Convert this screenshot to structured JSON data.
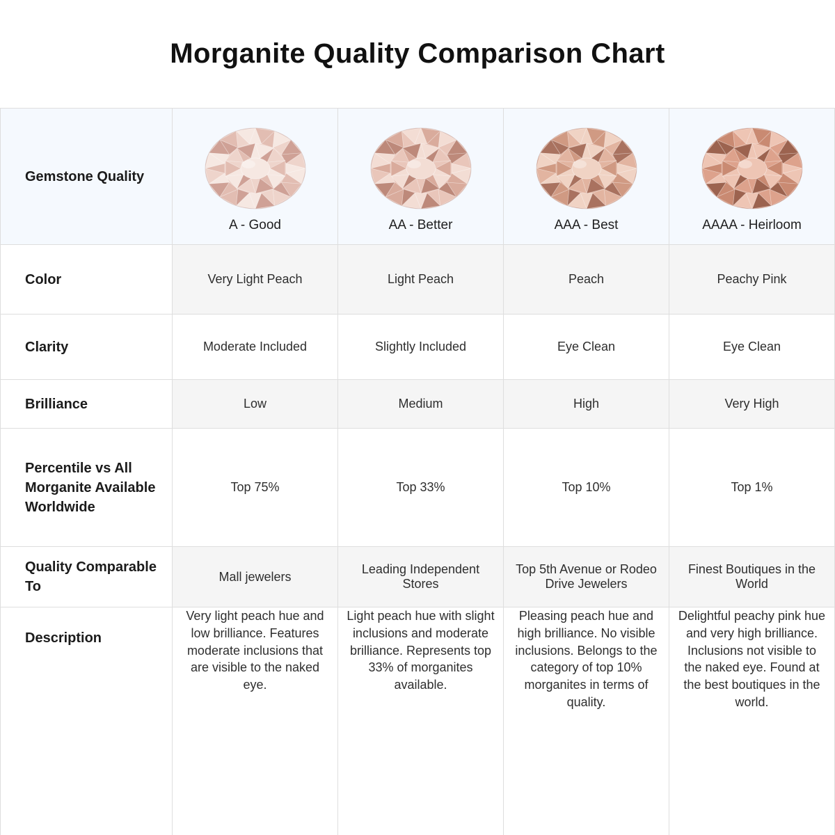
{
  "colors": {
    "header_bg": "#f5f9fe",
    "stripe_bg": "#f5f5f5",
    "border": "#dedede",
    "title_color": "#111111",
    "label_color": "#1b1b1b",
    "text_color": "#2e2e2e"
  },
  "chart_data": {
    "type": "table",
    "title": "Morganite Quality Comparison Chart",
    "corner_label": "Gemstone Quality",
    "columns": [
      {
        "grade": "A - Good",
        "gem_colors": {
          "light": "#f6e8e2",
          "base": "#eed4cb",
          "mid": "#e2bdb2",
          "dark": "#cfa196"
        }
      },
      {
        "grade": "AA - Better",
        "gem_colors": {
          "light": "#f3ddd4",
          "base": "#e9c6ba",
          "mid": "#d9ab9c",
          "dark": "#bd897a"
        }
      },
      {
        "grade": "AAA - Best",
        "gem_colors": {
          "light": "#f0d3c4",
          "base": "#e2b4a0",
          "mid": "#d09a83",
          "dark": "#a9725f"
        }
      },
      {
        "grade": "AAAA - Heirloom",
        "gem_colors": {
          "light": "#eec5b4",
          "base": "#dda28c",
          "mid": "#c98a72",
          "dark": "#9c634f"
        }
      }
    ],
    "rows": [
      {
        "label": "Color",
        "values": [
          "Very Light Peach",
          "Light Peach",
          "Peach",
          "Peachy Pink"
        ]
      },
      {
        "label": "Clarity",
        "values": [
          "Moderate Included",
          "Slightly Included",
          "Eye Clean",
          "Eye Clean"
        ]
      },
      {
        "label": "Brilliance",
        "values": [
          "Low",
          "Medium",
          "High",
          "Very High"
        ]
      },
      {
        "label": "Percentile vs All Morganite Available Worldwide",
        "values": [
          "Top 75%",
          "Top 33%",
          "Top 10%",
          "Top 1%"
        ]
      },
      {
        "label": "Quality Comparable To",
        "values": [
          "Mall jewelers",
          "Leading Independent Stores",
          "Top 5th Avenue or Rodeo Drive Jewelers",
          "Finest Boutiques in the World"
        ]
      },
      {
        "label": "Description",
        "values": [
          "Very light peach hue and low brilliance. Features moderate inclusions that are visible to the naked eye.",
          "Light peach hue with slight inclusions and moderate brilliance. Represents top 33% of morganites available.",
          "Pleasing peach hue and high brilliance. No visible inclusions. Belongs to the category of top 10% morganites in terms of quality.",
          "Delightful peachy pink hue and very high brilliance. Inclusions not visible to the naked eye. Found at the best boutiques in the world."
        ]
      }
    ]
  }
}
